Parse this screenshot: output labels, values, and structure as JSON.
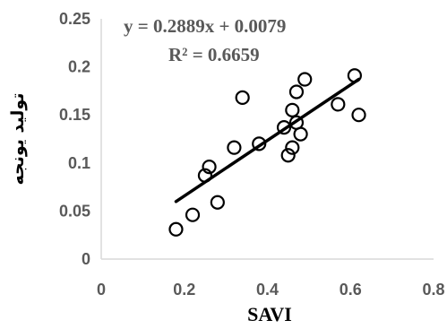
{
  "chart_data": {
    "type": "scatter",
    "xlabel": "SAVI",
    "ylabel": "تولید یونجه",
    "xlim": [
      0,
      0.8
    ],
    "ylim": [
      0,
      0.25
    ],
    "xticks": [
      "0",
      "0.2",
      "0.4",
      "0.6",
      "0.8"
    ],
    "yticks": [
      "0",
      "0.05",
      "0.1",
      "0.15",
      "0.2",
      "0.25"
    ],
    "grid": false,
    "marker": "open-circle",
    "marker_color": "#000000",
    "points": [
      {
        "x": 0.18,
        "y": 0.031
      },
      {
        "x": 0.22,
        "y": 0.046
      },
      {
        "x": 0.25,
        "y": 0.087
      },
      {
        "x": 0.26,
        "y": 0.096
      },
      {
        "x": 0.28,
        "y": 0.059
      },
      {
        "x": 0.32,
        "y": 0.116
      },
      {
        "x": 0.34,
        "y": 0.168
      },
      {
        "x": 0.38,
        "y": 0.12
      },
      {
        "x": 0.44,
        "y": 0.137
      },
      {
        "x": 0.45,
        "y": 0.108
      },
      {
        "x": 0.46,
        "y": 0.116
      },
      {
        "x": 0.46,
        "y": 0.155
      },
      {
        "x": 0.47,
        "y": 0.142
      },
      {
        "x": 0.47,
        "y": 0.174
      },
      {
        "x": 0.48,
        "y": 0.13
      },
      {
        "x": 0.49,
        "y": 0.187
      },
      {
        "x": 0.57,
        "y": 0.161
      },
      {
        "x": 0.61,
        "y": 0.191
      },
      {
        "x": 0.62,
        "y": 0.15
      }
    ],
    "trendline": {
      "slope": 0.2889,
      "intercept": 0.0079,
      "x_range": [
        0.18,
        0.62
      ]
    },
    "annotations": {
      "equation": "y = 0.2889x + 0.0079",
      "r_squared": "R² = 0.6659"
    }
  }
}
